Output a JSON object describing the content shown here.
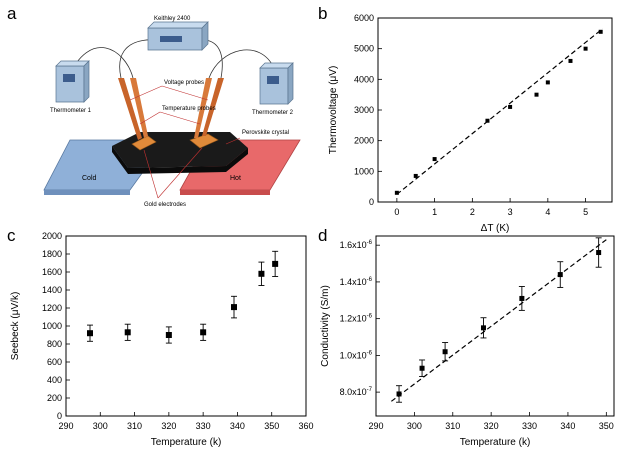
{
  "panel_labels": {
    "a": "a",
    "b": "b",
    "c": "c",
    "d": "d"
  },
  "schematic": {
    "instrument": "Keithley 2400",
    "thermometer_1": "Thermometer 1",
    "thermometer_2": "Thermometer 2",
    "voltage_probes": "Voltage probes",
    "temperature_probes": "Temperature probes",
    "perovskite_crystal": "Perovskite crystal",
    "gold_electrodes": "Gold electrodes",
    "cold": "Cold",
    "hot": "Hot",
    "colors": {
      "cold_plate": "#8fb0d8",
      "hot_plate": "#e8696a",
      "crystal": "#1a1a1a",
      "probe": "#c8642a",
      "electrode": "#e08a3a",
      "box": "#a9c2dc"
    }
  },
  "chart_data": [
    {
      "id": "b",
      "type": "scatter",
      "xlabel": "ΔT (K)",
      "ylabel": "Thermovoltage (μV)",
      "xlim": [
        -0.5,
        5.7
      ],
      "ylim": [
        0,
        6000
      ],
      "xticks": [
        0,
        1,
        2,
        3,
        4,
        5
      ],
      "yticks": [
        0,
        1000,
        2000,
        3000,
        4000,
        5000,
        6000
      ],
      "x": [
        0.0,
        0.5,
        1.0,
        2.4,
        3.0,
        3.7,
        4.0,
        4.6,
        5.0,
        5.4
      ],
      "y": [
        300,
        850,
        1400,
        2650,
        3100,
        3500,
        3900,
        4600,
        5000,
        5550
      ],
      "fit_line": {
        "x": [
          0.0,
          5.45
        ],
        "y": [
          250,
          5650
        ],
        "style": "dashed"
      }
    },
    {
      "id": "c",
      "type": "scatter",
      "xlabel": "Temperature (k)",
      "ylabel": "Seebeck (μV/k)",
      "xlim": [
        290,
        360
      ],
      "ylim": [
        0,
        2000
      ],
      "xticks": [
        290,
        300,
        310,
        320,
        330,
        340,
        350,
        360
      ],
      "yticks": [
        0,
        200,
        400,
        600,
        800,
        1000,
        1200,
        1400,
        1600,
        1800,
        2000
      ],
      "x": [
        297,
        308,
        320,
        330,
        339,
        347,
        351
      ],
      "y": [
        920,
        930,
        900,
        930,
        1210,
        1580,
        1690
      ],
      "error": [
        90,
        90,
        90,
        90,
        120,
        130,
        140
      ]
    },
    {
      "id": "d",
      "type": "scatter",
      "xlabel": "Temperature (k)",
      "ylabel": "Conductivity (S/m)",
      "xlim": [
        290,
        352
      ],
      "ylim": [
        6.7e-07,
        1.65e-06
      ],
      "xticks": [
        290,
        300,
        310,
        320,
        330,
        340,
        350
      ],
      "yticks": [
        8e-07,
        1e-06,
        1.2e-06,
        1.4e-06,
        1.6e-06
      ],
      "ytick_labels": [
        {
          "mantissa": "8.0x10",
          "exp": "-7"
        },
        {
          "mantissa": "1.0x10",
          "exp": "-6"
        },
        {
          "mantissa": "1.2x10",
          "exp": "-6"
        },
        {
          "mantissa": "1.4x10",
          "exp": "-6"
        },
        {
          "mantissa": "1.6x10",
          "exp": "-6"
        }
      ],
      "x": [
        296,
        302,
        308,
        318,
        328,
        338,
        348
      ],
      "y": [
        7.9e-07,
        9.3e-07,
        1.02e-06,
        1.15e-06,
        1.31e-06,
        1.44e-06,
        1.56e-06
      ],
      "error": [
        4.5e-08,
        4.5e-08,
        5e-08,
        5.5e-08,
        6.5e-08,
        7e-08,
        8e-08
      ],
      "fit_line": {
        "x": [
          294,
          350
        ],
        "y": [
          7.5e-07,
          1.63e-06
        ],
        "style": "dashed"
      }
    }
  ]
}
